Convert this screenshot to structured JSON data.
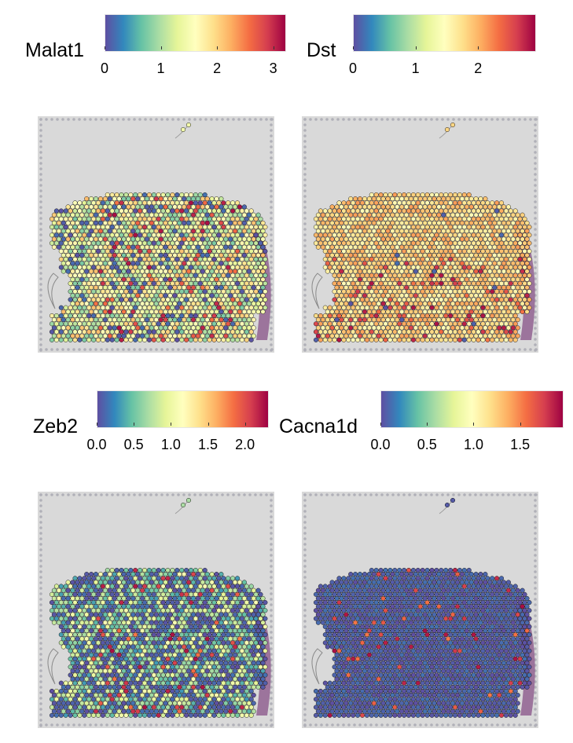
{
  "chart_data": [
    {
      "type": "spatial_scatter",
      "gene": "Malat1",
      "colorbar": {
        "palette": "Spectral (reversed)",
        "ticks": [
          "0",
          "1",
          "2",
          "3"
        ],
        "tick_values": [
          0,
          1,
          2,
          3
        ],
        "range": [
          0,
          3.2
        ]
      },
      "spot_expression_pattern": "mostly light green-yellow (≈1.5–2), scattered dark blue spots on left, red spots in centre",
      "pattern_params": {
        "base": 0.45,
        "noise": 0.45,
        "low_frac": 0.12,
        "high_frac": 0.1,
        "high_bias": "center"
      }
    },
    {
      "type": "spatial_scatter",
      "gene": "Dst",
      "colorbar": {
        "palette": "Spectral (reversed)",
        "ticks": [
          "0",
          "1",
          "2"
        ],
        "tick_values": [
          0,
          1,
          2
        ],
        "range": [
          0,
          2.9
        ]
      },
      "spot_expression_pattern": "mostly pale yellow / peach, reddish spots in lower-central region",
      "pattern_params": {
        "base": 0.62,
        "noise": 0.22,
        "low_frac": 0.01,
        "high_frac": 0.1,
        "high_bias": "lower"
      }
    },
    {
      "type": "spatial_scatter",
      "gene": "Zeb2",
      "colorbar": {
        "palette": "Spectral (reversed)",
        "ticks": [
          "0.0",
          "0.5",
          "1.0",
          "1.5",
          "2.0"
        ],
        "tick_values": [
          0,
          0.5,
          1.0,
          1.5,
          2.0
        ],
        "range": [
          0,
          2.3
        ]
      },
      "spot_expression_pattern": "dark blue lower-left, light green upper region, red spots scattered centre-right",
      "pattern_params": {
        "base": 0.3,
        "noise": 0.35,
        "low_frac": 0.4,
        "high_frac": 0.06,
        "high_bias": "center"
      }
    },
    {
      "type": "spatial_scatter",
      "gene": "Cacna1d",
      "colorbar": {
        "palette": "Spectral (reversed)",
        "ticks": [
          "0.0",
          "0.5",
          "1.0",
          "1.5"
        ],
        "tick_values": [
          0,
          0.5,
          1.0,
          1.5
        ],
        "range": [
          0,
          1.95
        ]
      },
      "spot_expression_pattern": "predominantly dark blue (0), sparse yellow/orange spots",
      "pattern_params": {
        "base": 0.02,
        "noise": 0.05,
        "low_frac": 0.8,
        "high_frac": 0.04,
        "high_bias": "any"
      }
    }
  ],
  "colors": {
    "spectral_reversed": [
      "#5E4FA2",
      "#3288BD",
      "#66C2A5",
      "#ABDDA4",
      "#E6F598",
      "#FFFFBF",
      "#FEE08B",
      "#FDAE61",
      "#F46D43",
      "#D53E4F",
      "#9E0142"
    ],
    "tissue_background": "#d9d9d9",
    "tissue_purple": "#8c5a8c",
    "spot_outline": "#1a1a1a"
  }
}
